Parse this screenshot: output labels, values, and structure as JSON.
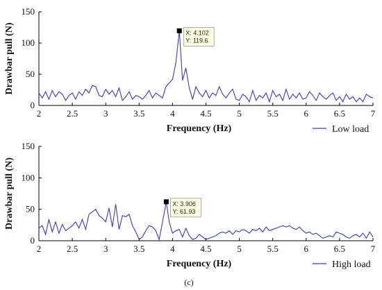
{
  "chart_data": [
    {
      "type": "line",
      "xlabel": "Frequency (Hz)",
      "ylabel": "Drawbar pull (N)",
      "xlim": [
        2,
        7
      ],
      "ylim": [
        0,
        150
      ],
      "xticks": [
        "2",
        "2.5",
        "3",
        "3.5",
        "4",
        "4.5",
        "5",
        "5.5",
        "6",
        "6.5",
        "7"
      ],
      "yticks": [
        "0",
        "50",
        "100",
        "150"
      ],
      "grid": false,
      "legend_position": "bottom-right",
      "series": [
        {
          "name": "Low load",
          "color": "#3a3ab8",
          "x": [
            2.0,
            2.05,
            2.1,
            2.15,
            2.2,
            2.25,
            2.3,
            2.35,
            2.4,
            2.45,
            2.5,
            2.55,
            2.6,
            2.65,
            2.7,
            2.75,
            2.8,
            2.85,
            2.9,
            2.95,
            3.0,
            3.05,
            3.1,
            3.15,
            3.2,
            3.25,
            3.3,
            3.35,
            3.4,
            3.45,
            3.5,
            3.55,
            3.6,
            3.65,
            3.7,
            3.75,
            3.8,
            3.85,
            3.9,
            3.95,
            4.0,
            4.05,
            4.102,
            4.15,
            4.2,
            4.25,
            4.3,
            4.35,
            4.4,
            4.45,
            4.5,
            4.55,
            4.6,
            4.65,
            4.7,
            4.75,
            4.8,
            4.85,
            4.9,
            4.95,
            5.0,
            5.05,
            5.1,
            5.15,
            5.2,
            5.25,
            5.3,
            5.35,
            5.4,
            5.45,
            5.5,
            5.55,
            5.6,
            5.65,
            5.7,
            5.75,
            5.8,
            5.85,
            5.9,
            5.95,
            6.0,
            6.05,
            6.1,
            6.15,
            6.2,
            6.25,
            6.3,
            6.35,
            6.4,
            6.45,
            6.5,
            6.55,
            6.6,
            6.65,
            6.7,
            6.75,
            6.8,
            6.85,
            6.9,
            6.95,
            7.0
          ],
          "y": [
            20,
            12,
            22,
            10,
            24,
            14,
            22,
            18,
            8,
            16,
            20,
            10,
            22,
            16,
            26,
            20,
            32,
            30,
            16,
            14,
            26,
            18,
            24,
            14,
            28,
            8,
            14,
            22,
            10,
            16,
            14,
            10,
            16,
            24,
            12,
            20,
            16,
            12,
            30,
            36,
            42,
            68,
            119.6,
            40,
            60,
            28,
            10,
            30,
            20,
            14,
            24,
            12,
            20,
            16,
            30,
            18,
            12,
            20,
            26,
            10,
            8,
            18,
            14,
            6,
            24,
            8,
            16,
            12,
            20,
            6,
            24,
            14,
            18,
            8,
            26,
            10,
            18,
            12,
            20,
            10,
            12,
            22,
            16,
            8,
            20,
            14,
            10,
            16,
            20,
            8,
            14,
            6,
            18,
            10,
            14,
            6,
            12,
            6,
            18,
            14,
            12
          ],
          "annotation": {
            "x": 4.102,
            "y": 119.6,
            "x_text": "X: 4.102",
            "y_text": "Y: 119.6"
          }
        }
      ]
    },
    {
      "type": "line",
      "xlabel": "Frequency (Hz)",
      "ylabel": "Drawbar pull (N)",
      "xlim": [
        2,
        7
      ],
      "ylim": [
        0,
        150
      ],
      "xticks": [
        "2",
        "2.5",
        "3",
        "3.5",
        "4",
        "4.5",
        "5",
        "5.5",
        "6",
        "6.5",
        "7"
      ],
      "yticks": [
        "0",
        "50",
        "100",
        "150"
      ],
      "grid": false,
      "legend_position": "bottom-right",
      "series": [
        {
          "name": "High load",
          "color": "#3a3ab8",
          "x": [
            2.0,
            2.05,
            2.1,
            2.15,
            2.2,
            2.25,
            2.3,
            2.35,
            2.4,
            2.45,
            2.5,
            2.55,
            2.6,
            2.65,
            2.7,
            2.75,
            2.8,
            2.85,
            2.9,
            2.95,
            3.0,
            3.05,
            3.1,
            3.15,
            3.2,
            3.25,
            3.3,
            3.35,
            3.4,
            3.45,
            3.5,
            3.55,
            3.6,
            3.65,
            3.7,
            3.75,
            3.8,
            3.85,
            3.906,
            3.95,
            4.0,
            4.05,
            4.1,
            4.15,
            4.2,
            4.25,
            4.3,
            4.35,
            4.4,
            4.45,
            4.5,
            4.55,
            4.6,
            4.65,
            4.7,
            4.75,
            4.8,
            4.85,
            4.9,
            4.95,
            5.0,
            5.05,
            5.1,
            5.15,
            5.2,
            5.25,
            5.3,
            5.35,
            5.4,
            5.45,
            5.5,
            5.55,
            5.6,
            5.65,
            5.7,
            5.75,
            5.8,
            5.85,
            5.9,
            5.95,
            6.0,
            6.05,
            6.1,
            6.15,
            6.2,
            6.25,
            6.3,
            6.35,
            6.4,
            6.45,
            6.5,
            6.55,
            6.6,
            6.65,
            6.7,
            6.75,
            6.8,
            6.85,
            6.9,
            6.95,
            7.0
          ],
          "y": [
            20,
            24,
            10,
            34,
            14,
            30,
            12,
            26,
            16,
            20,
            24,
            30,
            20,
            34,
            18,
            42,
            46,
            50,
            40,
            36,
            30,
            52,
            22,
            58,
            18,
            40,
            38,
            42,
            24,
            14,
            2,
            6,
            16,
            24,
            22,
            16,
            2,
            30,
            61.93,
            30,
            12,
            16,
            18,
            6,
            20,
            8,
            2,
            4,
            10,
            6,
            2,
            4,
            6,
            8,
            12,
            14,
            12,
            16,
            10,
            16,
            14,
            18,
            16,
            12,
            18,
            16,
            20,
            14,
            22,
            16,
            18,
            20,
            22,
            24,
            22,
            24,
            20,
            18,
            22,
            16,
            12,
            14,
            10,
            12,
            8,
            4,
            6,
            8,
            6,
            14,
            12,
            10,
            6,
            4,
            8,
            10,
            6,
            12,
            4,
            14,
            6
          ],
          "annotation": {
            "x": 3.906,
            "y": 61.93,
            "x_text": "X: 3.906",
            "y_text": "Y: 61.93"
          }
        }
      ]
    }
  ],
  "figure": {
    "caption": "(c)"
  }
}
